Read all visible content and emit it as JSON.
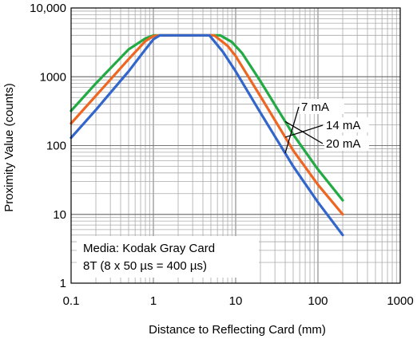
{
  "chart_data": {
    "type": "line",
    "title": "",
    "xlabel": "Distance to Reflecting Card (mm)",
    "ylabel": "Proximity Value (counts)",
    "x_scale": "log",
    "y_scale": "log",
    "xlim": [
      0.1,
      1000
    ],
    "ylim": [
      1,
      10000
    ],
    "x_ticks": [
      {
        "value": 0.1,
        "label": "0.1"
      },
      {
        "value": 1,
        "label": "1"
      },
      {
        "value": 10,
        "label": "10"
      },
      {
        "value": 100,
        "label": "100"
      },
      {
        "value": 1000,
        "label": "1000"
      }
    ],
    "y_ticks": [
      {
        "value": 1,
        "label": "1"
      },
      {
        "value": 10,
        "label": "10"
      },
      {
        "value": 100,
        "label": "100"
      },
      {
        "value": 1000,
        "label": "1000"
      },
      {
        "value": 10000,
        "label": "10,000"
      }
    ],
    "grid": true,
    "series": [
      {
        "name": "7 mA",
        "color": "#3366cc",
        "x": [
          0.1,
          0.2,
          0.5,
          0.8,
          1.0,
          1.2,
          2,
          3,
          4.8,
          7,
          10,
          20,
          50,
          100,
          200
        ],
        "y": [
          130,
          330,
          1200,
          2500,
          3500,
          4000,
          4000,
          4000,
          4000,
          2300,
          1200,
          300,
          50,
          15,
          5
        ]
      },
      {
        "name": "14 mA",
        "color": "#ee6622",
        "x": [
          0.1,
          0.2,
          0.5,
          0.8,
          1.0,
          1.2,
          2,
          3,
          5.5,
          8,
          10,
          20,
          50,
          100,
          200
        ],
        "y": [
          210,
          530,
          1800,
          3300,
          3900,
          4000,
          4000,
          4000,
          4000,
          2800,
          2000,
          520,
          85,
          27,
          10
        ]
      },
      {
        "name": "20 mA",
        "color": "#22aa44",
        "x": [
          0.1,
          0.2,
          0.5,
          0.8,
          1.0,
          1.2,
          2,
          3,
          6.5,
          9,
          12,
          20,
          50,
          100,
          200
        ],
        "y": [
          320,
          800,
          2500,
          3600,
          4000,
          4000,
          4000,
          4000,
          4000,
          3200,
          2200,
          860,
          145,
          45,
          16
        ]
      }
    ],
    "annotations": [
      {
        "text": "Media: Kodak Gray Card"
      },
      {
        "text": "8T (8 x 50 µs = 400 µs)"
      }
    ]
  }
}
